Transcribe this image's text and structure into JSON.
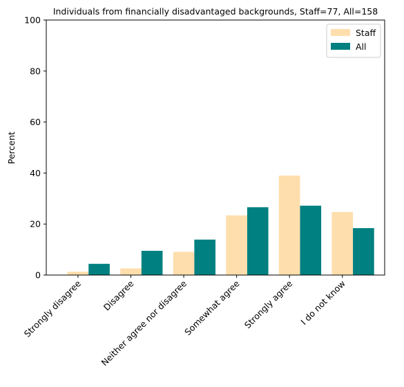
{
  "chart_data": {
    "type": "bar",
    "title": "Individuals from financially disadvantaged backgrounds, Staff=77, All=158",
    "xlabel": "",
    "ylabel": "Percent",
    "ylim": [
      0,
      100
    ],
    "yticks": [
      0,
      20,
      40,
      60,
      80,
      100
    ],
    "grid": false,
    "legend_position": "top-right",
    "categories": [
      "Strongly disagree",
      "Disagree",
      "Neither agree nor disagree",
      "Somewhat agree",
      "Strongly agree",
      "I do not know"
    ],
    "series": [
      {
        "name": "Staff",
        "color": "#ffdead",
        "values": [
          1.3,
          2.6,
          9.1,
          23.4,
          39.0,
          24.7
        ]
      },
      {
        "name": "All",
        "color": "#008080",
        "values": [
          4.4,
          9.5,
          13.9,
          26.6,
          27.2,
          18.4
        ]
      }
    ]
  }
}
